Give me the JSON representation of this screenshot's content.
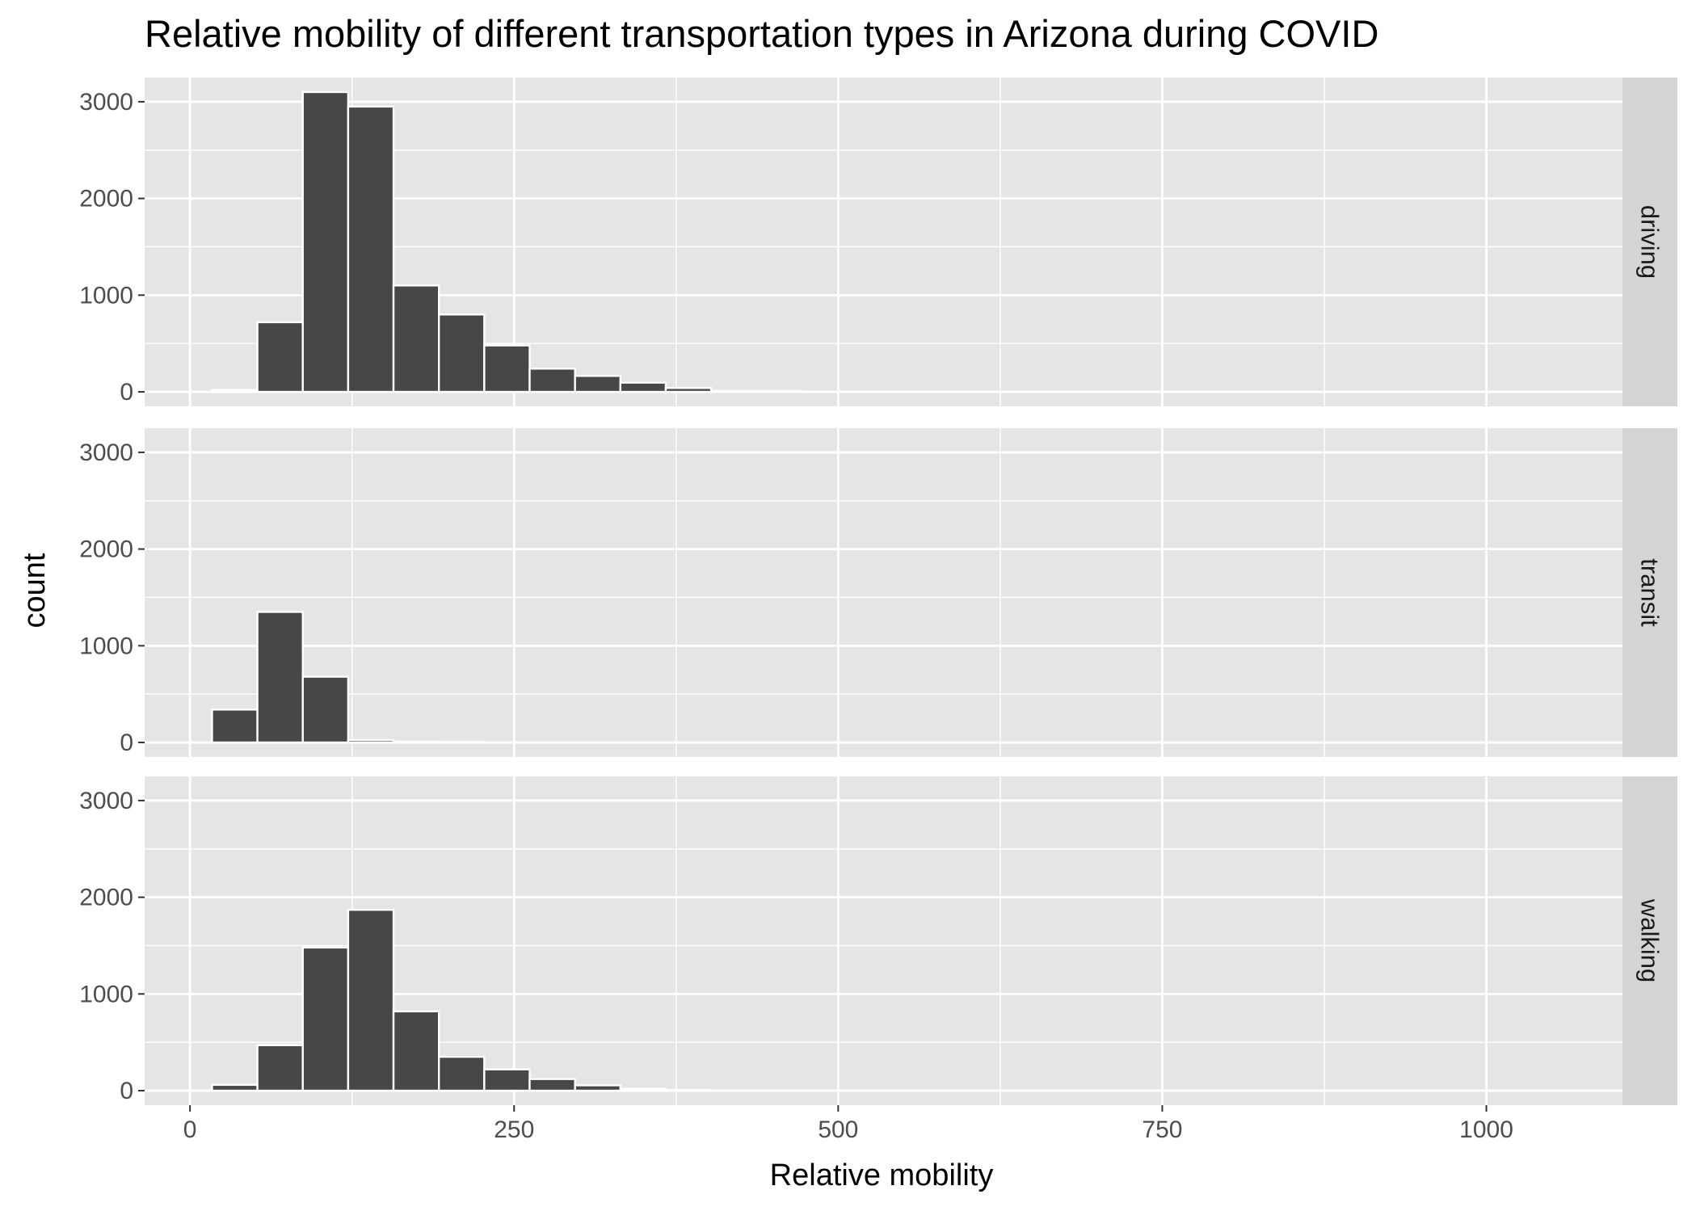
{
  "chart_data": {
    "type": "bar",
    "subtype": "faceted histogram",
    "title": "Relative mobility of different transportation types in Arizona during COVID",
    "xlabel": "Relative mobility",
    "ylabel": "count",
    "xlim": [
      -35,
      1105
    ],
    "ylim": [
      -150,
      3250
    ],
    "x_ticks": [
      0,
      250,
      500,
      750,
      1000
    ],
    "x_tick_labels": [
      "0",
      "250",
      "500",
      "750",
      "1000"
    ],
    "y_ticks": [
      0,
      1000,
      2000,
      3000
    ],
    "y_tick_labels": [
      "0",
      "1000",
      "2000",
      "3000"
    ],
    "grid": true,
    "facet_strip_position": "right",
    "colors": {
      "bar_fill": "#474747",
      "bar_outline": "#ffffff",
      "panel_background": "#e5e5e5",
      "grid": "#ffffff",
      "strip_background": "#d4d4d4"
    },
    "facets": [
      {
        "label": "driving",
        "bins": [
          {
            "x0": 17,
            "x1": 52,
            "count": 20
          },
          {
            "x0": 52,
            "x1": 87,
            "count": 720
          },
          {
            "x0": 87,
            "x1": 122,
            "count": 3100
          },
          {
            "x0": 122,
            "x1": 157,
            "count": 2950
          },
          {
            "x0": 157,
            "x1": 192,
            "count": 1100
          },
          {
            "x0": 192,
            "x1": 227,
            "count": 800
          },
          {
            "x0": 227,
            "x1": 262,
            "count": 480
          },
          {
            "x0": 262,
            "x1": 297,
            "count": 240
          },
          {
            "x0": 297,
            "x1": 332,
            "count": 165
          },
          {
            "x0": 332,
            "x1": 367,
            "count": 95
          },
          {
            "x0": 367,
            "x1": 402,
            "count": 40
          },
          {
            "x0": 402,
            "x1": 437,
            "count": 10
          },
          {
            "x0": 437,
            "x1": 472,
            "count": 8
          }
        ]
      },
      {
        "label": "transit",
        "bins": [
          {
            "x0": 17,
            "x1": 52,
            "count": 340
          },
          {
            "x0": 52,
            "x1": 87,
            "count": 1350
          },
          {
            "x0": 87,
            "x1": 122,
            "count": 680
          },
          {
            "x0": 122,
            "x1": 157,
            "count": 25
          },
          {
            "x0": 157,
            "x1": 192,
            "count": 10
          },
          {
            "x0": 192,
            "x1": 227,
            "count": 4
          }
        ]
      },
      {
        "label": "walking",
        "bins": [
          {
            "x0": 17,
            "x1": 52,
            "count": 60
          },
          {
            "x0": 52,
            "x1": 87,
            "count": 470
          },
          {
            "x0": 87,
            "x1": 122,
            "count": 1480
          },
          {
            "x0": 122,
            "x1": 157,
            "count": 1870
          },
          {
            "x0": 157,
            "x1": 192,
            "count": 820
          },
          {
            "x0": 192,
            "x1": 227,
            "count": 350
          },
          {
            "x0": 227,
            "x1": 262,
            "count": 220
          },
          {
            "x0": 262,
            "x1": 297,
            "count": 120
          },
          {
            "x0": 297,
            "x1": 332,
            "count": 55
          },
          {
            "x0": 332,
            "x1": 367,
            "count": 20
          },
          {
            "x0": 367,
            "x1": 402,
            "count": 8
          }
        ]
      }
    ]
  }
}
